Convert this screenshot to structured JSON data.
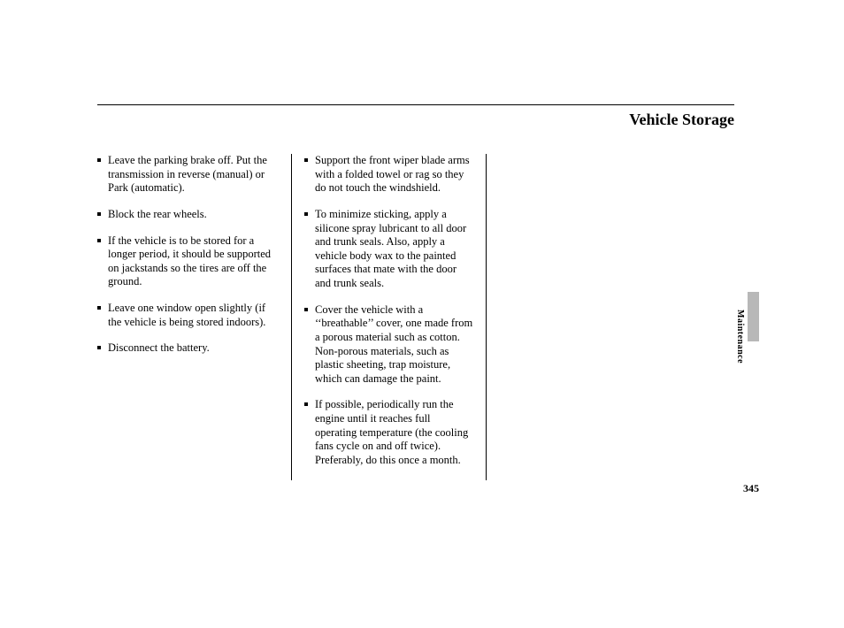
{
  "title": "Vehicle Storage",
  "section_label": "Maintenance",
  "page_number": "345",
  "col1": [
    "Leave the parking brake off. Put the transmission in reverse (manual) or Park (automatic).",
    "Block the rear wheels.",
    "If the vehicle is to be stored for a longer period, it should be supported on jackstands so the tires are off the ground.",
    "Leave one window open slightly (if the vehicle is being stored indoors).",
    "Disconnect the battery."
  ],
  "col2": [
    "Support the front wiper blade arms with a folded towel or rag so they do not touch the windshield.",
    "To minimize sticking, apply a silicone spray lubricant to all door and trunk seals. Also, apply a vehicle body wax to the painted surfaces that mate with the door and trunk seals.",
    "Cover the vehicle with a ‘‘breathable’’ cover, one made from a porous material such as cotton. Non-porous materials, such as plastic sheeting, trap moisture, which can damage the paint.",
    "If possible, periodically run the engine until it reaches full operating temperature (the cooling fans cycle on and off twice). Preferably, do this once a month."
  ],
  "colors": {
    "text": "#000000",
    "bg": "#ffffff",
    "tab": "#b8b8b8",
    "rule": "#000000"
  }
}
